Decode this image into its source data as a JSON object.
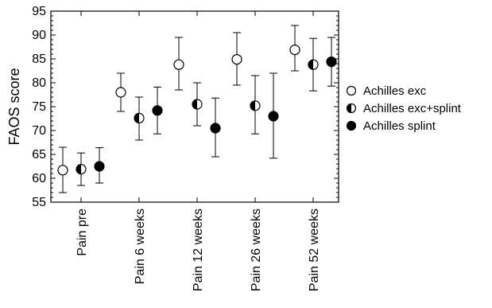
{
  "chart_data": {
    "type": "scatter",
    "categories": [
      "Pain pre",
      "Pain 6 weeks",
      "Pain 12 weeks",
      "Pain 26 weeks",
      "Pain 52 weeks"
    ],
    "ylabel": "FAOS score",
    "xlabel": "",
    "ylim": [
      55,
      95
    ],
    "yticks": [
      55,
      60,
      65,
      70,
      75,
      80,
      85,
      90,
      95
    ],
    "grid": false,
    "legend_position": "right",
    "series": [
      {
        "name": "Achilles exc",
        "marker": "open-circle",
        "values": [
          61.7,
          78.0,
          83.8,
          84.9,
          86.9
        ],
        "lower": [
          57.0,
          74.0,
          78.5,
          79.5,
          82.5
        ],
        "upper": [
          66.5,
          82.0,
          89.5,
          90.5,
          92.0
        ]
      },
      {
        "name": "Achilles exc+splint",
        "marker": "half-filled-circle",
        "values": [
          61.9,
          72.6,
          75.5,
          75.2,
          83.8
        ],
        "lower": [
          58.5,
          68.0,
          71.0,
          69.3,
          78.3
        ],
        "upper": [
          65.3,
          77.0,
          80.0,
          81.5,
          89.3
        ]
      },
      {
        "name": "Achilles splint",
        "marker": "filled-circle",
        "values": [
          62.5,
          74.2,
          70.5,
          73.0,
          84.4
        ],
        "lower": [
          59.0,
          69.3,
          64.5,
          64.2,
          79.3
        ],
        "upper": [
          66.4,
          79.1,
          76.8,
          82.0,
          89.5
        ]
      }
    ]
  }
}
